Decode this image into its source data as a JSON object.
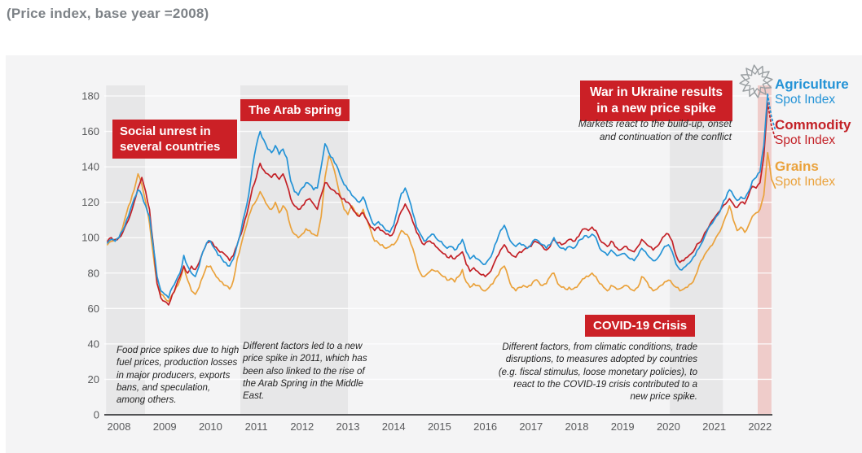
{
  "page": {
    "title": "(Price index, base year =2008)"
  },
  "colors": {
    "annotation_red": "#cb2026",
    "card_bg": "#f4f4f5",
    "band_gray": "#e7e7e8",
    "band_pink": "#efccca",
    "axis": "#515254",
    "tick_text": "#595a5c",
    "gridline": "#ffffff",
    "star_outline": "#9a9fa2"
  },
  "legend": {
    "items": [
      {
        "name": "Agriculture",
        "sub": "Spot Index",
        "color": "#2493d6"
      },
      {
        "name": "Commodity",
        "sub": "Spot Index",
        "color": "#c32127"
      },
      {
        "name": "Grains",
        "sub": "Spot Index",
        "color": "#eaa23c"
      }
    ]
  },
  "annotations": {
    "social": {
      "title": "Social unrest in several countries",
      "body": "Food price spikes due to high fuel prices, production losses in major producers, exports bans, and speculation, among others."
    },
    "arab": {
      "title": "The Arab spring",
      "body": "Different factors led to a new price spike in 2011, which has been also linked to the rise of the Arab Spring in the Middle East."
    },
    "covid": {
      "title": "COVID-19 Crisis",
      "body": "Different factors, from climatic conditions, trade disruptions, to measures adopted by countries (e.g. fiscal stimulus, loose monetary policies), to react to the COVID-19 crisis contributed to a new price spike."
    },
    "war": {
      "title": "War in Ukraine results in a new price spike",
      "body": "Markets react to the build-up, onset and continuation of the conflict"
    }
  },
  "chart_data": {
    "type": "line",
    "title": "(Price index, base year =2008)",
    "xlabel": "",
    "ylabel": "",
    "x_start": 2007.75,
    "x_step_months": 1,
    "x_ticks": [
      2008,
      2009,
      2010,
      2011,
      2012,
      2013,
      2014,
      2015,
      2016,
      2017,
      2018,
      2019,
      2020,
      2021,
      2022
    ],
    "ylim": [
      0,
      180
    ],
    "y_ticks": [
      0,
      20,
      40,
      60,
      80,
      100,
      120,
      140,
      160,
      180
    ],
    "grid": true,
    "legend_position": "right",
    "bands": [
      {
        "name": "social-unrest-band",
        "from": 2007.72,
        "to": 2008.57,
        "color": "#e7e7e8"
      },
      {
        "name": "arab-spring-band",
        "from": 2010.65,
        "to": 2013.0,
        "color": "#e7e7e8"
      },
      {
        "name": "covid-band",
        "from": 2020.03,
        "to": 2021.19,
        "color": "#e7e7e8"
      },
      {
        "name": "ukraine-war-band",
        "from": 2021.95,
        "to": 2022.25,
        "color": "#efccca"
      }
    ],
    "series": [
      {
        "name": "Grains Spot Index",
        "color": "#eaa23c",
        "values": [
          96,
          98,
          99,
          100,
          106,
          114,
          120,
          127,
          136,
          130,
          120,
          108,
          90,
          74,
          68,
          66,
          64,
          68,
          72,
          76,
          84,
          76,
          70,
          68,
          72,
          78,
          84,
          84,
          80,
          77,
          75,
          73,
          71,
          76,
          88,
          96,
          104,
          112,
          118,
          121,
          126,
          122,
          118,
          116,
          120,
          114,
          118,
          115,
          106,
          102,
          100,
          102,
          105,
          104,
          102,
          101,
          112,
          134,
          146,
          141,
          133,
          124,
          116,
          113,
          118,
          114,
          112,
          116,
          110,
          104,
          98,
          97,
          96,
          94,
          95,
          96,
          99,
          104,
          102,
          100,
          94,
          86,
          80,
          78,
          80,
          82,
          81,
          80,
          78,
          76,
          77,
          75,
          78,
          82,
          75,
          72,
          74,
          73,
          71,
          70,
          72,
          74,
          78,
          82,
          84,
          78,
          72,
          70,
          72,
          73,
          72,
          73,
          76,
          75,
          73,
          74,
          78,
          80,
          74,
          72,
          71,
          72,
          71,
          72,
          75,
          77,
          78,
          80,
          78,
          74,
          72,
          70,
          73,
          72,
          71,
          72,
          73,
          71,
          70,
          72,
          78,
          76,
          72,
          70,
          71,
          73,
          75,
          76,
          74,
          72,
          70,
          71,
          72,
          74,
          78,
          84,
          88,
          92,
          95,
          98,
          102,
          106,
          112,
          118,
          110,
          104,
          106,
          103,
          107,
          112,
          114,
          116,
          124,
          148,
          133,
          128
        ]
      },
      {
        "name": "Commodity Spot Index",
        "color": "#c32127",
        "dotted_from": 173,
        "values": [
          98,
          100,
          99,
          100,
          103,
          108,
          113,
          120,
          128,
          134,
          126,
          116,
          96,
          74,
          66,
          64,
          62,
          68,
          73,
          78,
          84,
          80,
          84,
          82,
          86,
          92,
          97,
          98,
          95,
          93,
          92,
          90,
          87,
          90,
          96,
          102,
          110,
          118,
          128,
          134,
          142,
          138,
          136,
          134,
          136,
          133,
          136,
          130,
          122,
          118,
          116,
          118,
          121,
          122,
          119,
          116,
          124,
          131,
          129,
          127,
          125,
          123,
          122,
          120,
          117,
          114,
          112,
          114,
          110,
          106,
          104,
          106,
          104,
          102,
          101,
          103,
          109,
          115,
          119,
          115,
          109,
          103,
          99,
          96,
          98,
          97,
          95,
          93,
          91,
          89,
          90,
          88,
          90,
          92,
          85,
          81,
          83,
          81,
          79,
          78,
          80,
          84,
          89,
          93,
          96,
          92,
          90,
          89,
          92,
          93,
          94,
          95,
          98,
          97,
          95,
          93,
          95,
          99,
          97,
          96,
          97,
          99,
          98,
          100,
          103,
          105,
          104,
          106,
          104,
          99,
          97,
          95,
          98,
          95,
          93,
          94,
          95,
          93,
          92,
          95,
          99,
          97,
          95,
          93,
          95,
          98,
          101,
          102,
          98,
          90,
          86,
          87,
          89,
          91,
          94,
          97,
          100,
          104,
          108,
          111,
          114,
          117,
          119,
          122,
          119,
          117,
          120,
          119,
          124,
          129,
          128,
          131,
          146,
          176,
          163,
          156
        ]
      },
      {
        "name": "Agriculture Spot Index",
        "color": "#2493d6",
        "dotted_from": 173,
        "values": [
          97,
          99,
          98,
          100,
          104,
          110,
          116,
          122,
          127,
          124,
          118,
          112,
          95,
          78,
          70,
          68,
          66,
          72,
          76,
          80,
          90,
          84,
          80,
          78,
          84,
          92,
          97,
          98,
          94,
          90,
          88,
          86,
          84,
          88,
          96,
          104,
          114,
          124,
          140,
          152,
          160,
          155,
          150,
          148,
          152,
          147,
          150,
          145,
          132,
          126,
          124,
          128,
          131,
          130,
          127,
          128,
          140,
          153,
          148,
          145,
          141,
          135,
          130,
          127,
          124,
          122,
          120,
          123,
          117,
          111,
          107,
          109,
          107,
          104,
          103,
          107,
          116,
          125,
          128,
          122,
          114,
          106,
          102,
          98,
          100,
          102,
          100,
          98,
          96,
          94,
          95,
          93,
          96,
          99,
          92,
          88,
          90,
          88,
          86,
          85,
          88,
          92,
          98,
          104,
          107,
          101,
          97,
          95,
          97,
          96,
          94,
          96,
          99,
          98,
          96,
          94,
          96,
          100,
          96,
          94,
          93,
          95,
          94,
          96,
          99,
          101,
          100,
          102,
          100,
          94,
          92,
          90,
          93,
          91,
          90,
          91,
          90,
          88,
          87,
          90,
          94,
          92,
          89,
          87,
          88,
          91,
          95,
          96,
          92,
          85,
          82,
          83,
          85,
          87,
          90,
          94,
          98,
          103,
          107,
          110,
          113,
          118,
          122,
          127,
          124,
          121,
          123,
          122,
          126,
          132,
          134,
          137,
          152,
          181,
          168,
          161
        ]
      }
    ]
  }
}
